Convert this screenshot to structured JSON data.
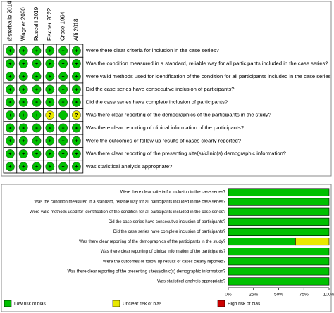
{
  "chart_data": [
    {
      "type": "traffic-light",
      "studies": [
        "Østerballe 2014",
        "Wagner 2020",
        "Ruscelli 2019",
        "Fischer 2022",
        "Croce 1994",
        "Affi 2018"
      ],
      "questions": [
        "Were there clear criteria for inclusion in the case series?",
        "Was the condition measured in a standard, reliable way for all participants included in the case series?",
        "Were valid methods used for identification of the condition for all participants included in the case series?",
        "Did the case series have consecutive inclusion of participants?",
        "Did the case series have complete inclusion of participants?",
        "Was there clear reporting of the demographics of the participants in the study?",
        "Was there clear reporting of clinical information of the participants?",
        "Were the outcomes or follow up results of cases clearly reported?",
        "Was there clear reporting of the presenting site(s)/clinic(s) demographic information?",
        "Was statistical analysis appropriate?"
      ],
      "judgments": [
        [
          "+",
          "+",
          "+",
          "+",
          "+",
          "+"
        ],
        [
          "+",
          "+",
          "+",
          "+",
          "+",
          "+"
        ],
        [
          "+",
          "+",
          "+",
          "+",
          "+",
          "+"
        ],
        [
          "+",
          "+",
          "+",
          "+",
          "+",
          "+"
        ],
        [
          "+",
          "+",
          "+",
          "+",
          "+",
          "+"
        ],
        [
          "+",
          "+",
          "+",
          "?",
          "+",
          "?"
        ],
        [
          "+",
          "+",
          "+",
          "+",
          "+",
          "+"
        ],
        [
          "+",
          "+",
          "+",
          "+",
          "+",
          "+"
        ],
        [
          "+",
          "+",
          "+",
          "+",
          "+",
          "+"
        ],
        [
          "+",
          "+",
          "+",
          "+",
          "+",
          "+"
        ]
      ],
      "judgment_colors": {
        "+": "#00c000",
        "?": "#e8e800"
      }
    },
    {
      "type": "stacked-barh",
      "categories": [
        "Were there clear criteria for inclusion in the case series?",
        "Was the condition measured in a standard, reliable way for all participants included in the case series?",
        "Were valid methods used for identification of the condition for all participants included in the case series?",
        "Did the case series have consecutive inclusion of participants?",
        "Did the case series have complete inclusion of participants?",
        "Was there clear reporting of the demographics of the participants in the study?",
        "Was there clear reporting of clinical information of the participants?",
        "Were the outcomes or follow up results of cases clearly reported?",
        "Was there clear reporting of the presenting site(s)/clinic(s) demographic information?",
        "Was statistical analysis appropriate?"
      ],
      "series": [
        {
          "name": "Low risk of bias",
          "color": "#00c000",
          "values": [
            100,
            100,
            100,
            100,
            100,
            66.7,
            100,
            100,
            100,
            100
          ]
        },
        {
          "name": "Unclear risk of bias",
          "color": "#e8e800",
          "values": [
            0,
            0,
            0,
            0,
            0,
            33.3,
            0,
            0,
            0,
            0
          ]
        },
        {
          "name": "High risk of bias",
          "color": "#cc0000",
          "values": [
            0,
            0,
            0,
            0,
            0,
            0,
            0,
            0,
            0,
            0
          ]
        }
      ],
      "xlim": [
        0,
        100
      ],
      "xticks": [
        {
          "value": 0,
          "label": "0%"
        },
        {
          "value": 25,
          "label": "25%"
        },
        {
          "value": 50,
          "label": "50%"
        },
        {
          "value": 75,
          "label": "75%"
        },
        {
          "value": 100,
          "label": "100%"
        }
      ]
    }
  ]
}
